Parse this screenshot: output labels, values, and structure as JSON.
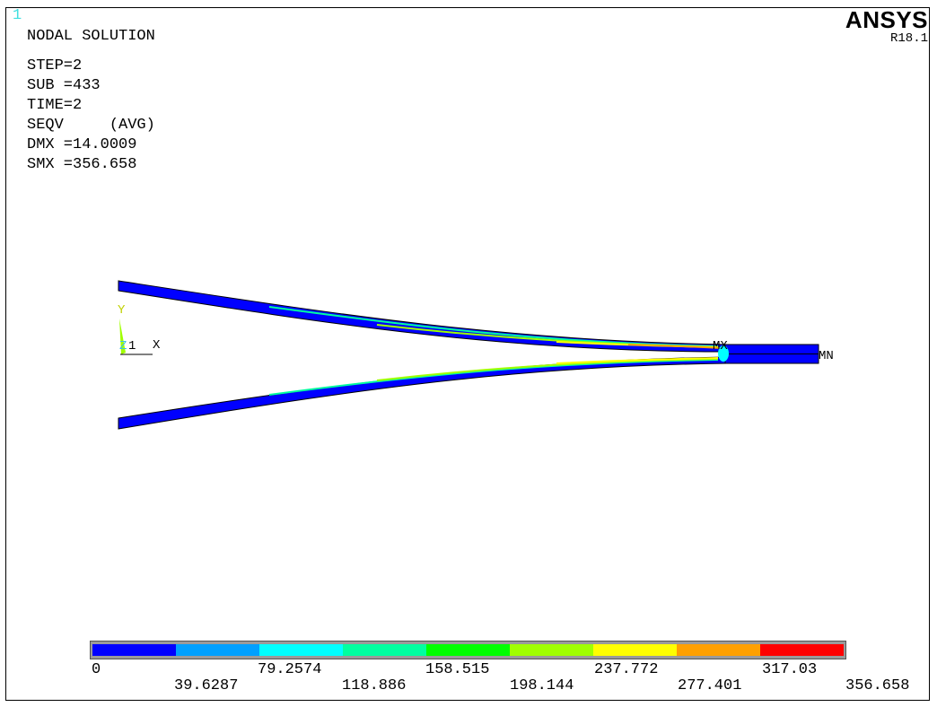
{
  "window": {
    "number": "1"
  },
  "branding": {
    "name": "ANSYS",
    "version": "R18.1"
  },
  "info": {
    "title": "NODAL SOLUTION",
    "step": "STEP=2",
    "sub": "SUB =433",
    "time": "TIME=2",
    "result": "SEQV     (AVG)",
    "dmx": "DMX =14.0009",
    "smx": "SMX =356.658"
  },
  "triad": {
    "y": "Y",
    "z": "Z",
    "one": "1",
    "x": "X"
  },
  "markers": {
    "max": "MX",
    "min": "MN"
  },
  "legend": {
    "colors": [
      "#0000ff",
      "#00a0ff",
      "#00ffff",
      "#00ffa0",
      "#00ff00",
      "#a0ff00",
      "#ffff00",
      "#ffa000",
      "#ff0000"
    ],
    "labels_top": [
      "0",
      "79.2574",
      "158.515",
      "237.772",
      "317.03"
    ],
    "labels_bottom": [
      "39.6287",
      "118.886",
      "198.144",
      "277.401",
      "356.658"
    ]
  }
}
